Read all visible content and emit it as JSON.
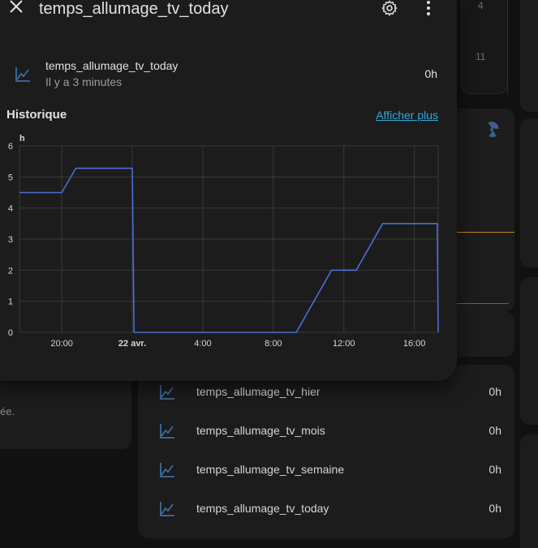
{
  "dialog": {
    "title": "temps_allumage_tv_today",
    "entity_name": "temps_allumage_tv_today",
    "last_changed": "Il y a 3 minutes",
    "state": "0h",
    "history_title": "Historique",
    "show_more": "Afficher plus",
    "icons": {
      "close": "close-icon",
      "settings": "gear-icon",
      "menu": "dots-vertical-icon",
      "entity": "chart-line-icon"
    }
  },
  "chart_data": {
    "type": "line",
    "ylabel": "h",
    "ylim": [
      0,
      6
    ],
    "y_ticks": [
      "0",
      "1",
      "2",
      "3",
      "4",
      "5",
      "6"
    ],
    "x_ticks": [
      "20:00",
      "22 avr.",
      "4:00",
      "8:00",
      "12:00",
      "16:00"
    ],
    "x_tick_hours": [
      20,
      24,
      28,
      32,
      36,
      40
    ],
    "xlim_hours": [
      17.6,
      41.35
    ],
    "x_unit": "hours since 21 avr. 00:00",
    "series": [
      {
        "color": "#4a6fd6",
        "x": [
          17.6,
          20.0,
          20.8,
          24.0,
          24.1,
          33.3,
          35.3,
          36.7,
          38.2,
          41.3,
          41.35
        ],
        "y": [
          4.5,
          4.5,
          5.28,
          5.28,
          0.0,
          0.0,
          2.0,
          2.0,
          3.5,
          3.5,
          0.0
        ]
      }
    ]
  },
  "background": {
    "calendar_numbers": [
      "4",
      "11"
    ],
    "partial_text": "ée.",
    "entities": [
      {
        "name": "temps_allumage_tv_hier",
        "value": "0h"
      },
      {
        "name": "temps_allumage_tv_mois",
        "value": "0h"
      },
      {
        "name": "temps_allumage_tv_semaine",
        "value": "0h"
      },
      {
        "name": "temps_allumage_tv_today",
        "value": "0h"
      }
    ],
    "radiation_icon": "radioactive-icon"
  }
}
